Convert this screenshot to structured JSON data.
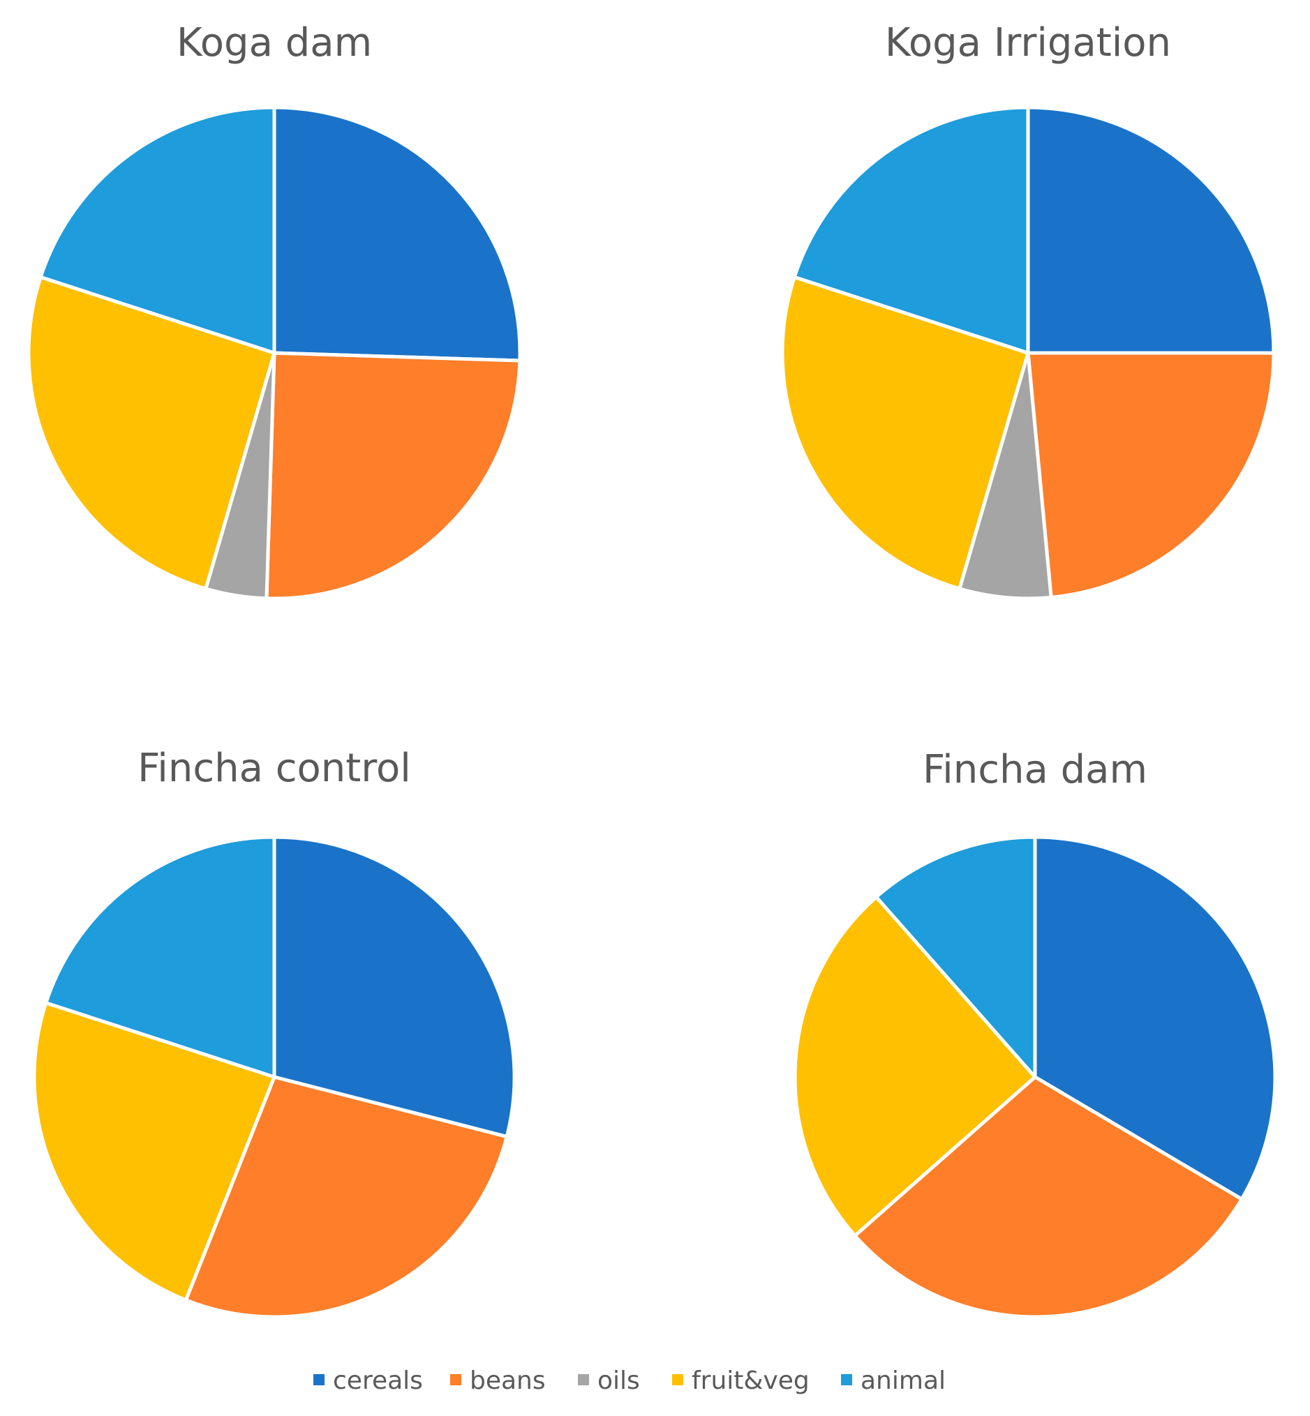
{
  "chart_data": [
    {
      "type": "pie",
      "title": "Koga dam",
      "categories": [
        "cereals",
        "beans",
        "oils",
        "fruit&veg",
        "animal"
      ],
      "values": [
        25.5,
        25.0,
        4.0,
        25.5,
        20.0
      ]
    },
    {
      "type": "pie",
      "title": "Koga Irrigation",
      "categories": [
        "cereals",
        "beans",
        "oils",
        "fruit&veg",
        "animal"
      ],
      "values": [
        25.0,
        23.5,
        6.0,
        25.5,
        20.0
      ]
    },
    {
      "type": "pie",
      "title": "Fincha control",
      "categories": [
        "cereals",
        "beans",
        "oils",
        "fruit&veg",
        "animal"
      ],
      "values": [
        29.0,
        27.0,
        0,
        24.0,
        20.0
      ]
    },
    {
      "type": "pie",
      "title": "Fincha dam",
      "categories": [
        "cereals",
        "beans",
        "oils",
        "fruit&veg",
        "animal"
      ],
      "values": [
        33.5,
        30.0,
        0,
        25.0,
        11.5
      ]
    }
  ],
  "legend": {
    "placement": "bottom",
    "items": [
      {
        "label": "cereals",
        "color": "#1A73C8"
      },
      {
        "label": "beans",
        "color": "#FE7E29"
      },
      {
        "label": "oils",
        "color": "#A5A5A5"
      },
      {
        "label": "fruit&veg",
        "color": "#FEC000"
      },
      {
        "label": "animal",
        "color": "#1E9CDB"
      }
    ]
  }
}
